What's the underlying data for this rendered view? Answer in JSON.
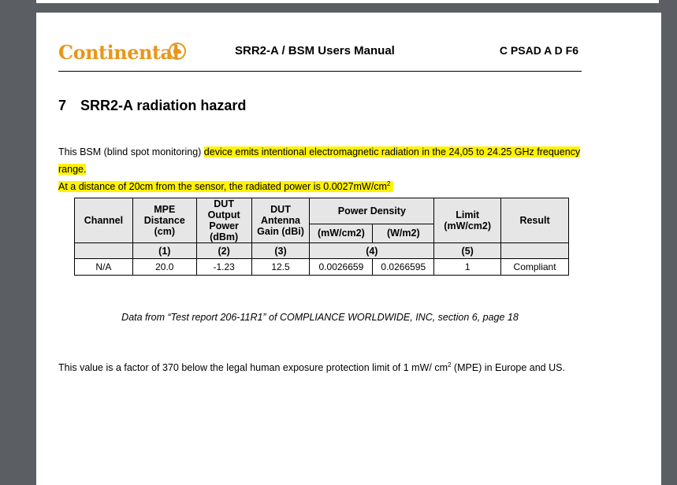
{
  "header": {
    "logo_text": "Continental",
    "title": "SRR2-A / BSM Users Manual",
    "doc_code": "C PSAD A D F6"
  },
  "section": {
    "number": "7",
    "title": "SRR2-A radiation hazard"
  },
  "intro": {
    "plain": "This BSM (blind spot monitoring) ",
    "highlight1": "device emits intentional electromagnetic radiation in the 24,05 to 24.25 GHz frequency range.",
    "highlight2": "At a distance of 20cm from the sensor, the radiated power is 0.0027mW/cm",
    "highlight2_sup": "2"
  },
  "table": {
    "headers": {
      "channel": "Channel",
      "mpe_distance": "MPE Distance (cm)",
      "dut_output_power": "DUT Output Power (dBm)",
      "dut_antenna_gain": "DUT Antenna Gain (dBi)",
      "power_density": "Power Density",
      "pd_mw": "(mW/cm2)",
      "pd_w": "(W/m2)",
      "limit": "Limit (mW/cm2)",
      "result": "Result"
    },
    "index_row": [
      "",
      "(1)",
      "(2)",
      "(3)",
      "(4)",
      "(5)",
      ""
    ],
    "rows": [
      [
        "N/A",
        "20.0",
        "-1.23",
        "12.5",
        "0.0026659",
        "0.0266595",
        "1",
        "Compliant"
      ]
    ]
  },
  "caption": "Data from “Test report 206-11R1” of COMPLIANCE WORLDWIDE, INC, section 6, page 18",
  "conclusion": {
    "text_before": "This value is a factor of 370 below the legal human exposure protection limit of 1 mW/ cm",
    "sup": "2",
    "text_after": " (MPE) in Europe and US."
  }
}
